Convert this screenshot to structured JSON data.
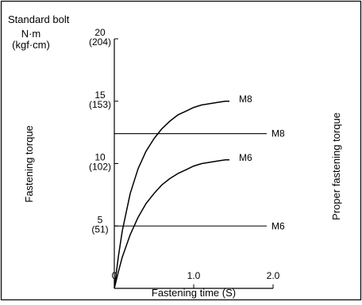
{
  "chart_data": {
    "type": "line",
    "title": "Standard bolt",
    "units_top": "N·m",
    "units_bottom": "(kgf·cm)",
    "xlabel": "Fastening time (S)",
    "ylabel_left": "Fastening torque",
    "ylabel_right": "Proper fastening torque",
    "xlim": [
      0,
      2.0
    ],
    "ylim": [
      0,
      20
    ],
    "x_ticks": [
      {
        "value": 0,
        "label": "0"
      },
      {
        "value": 1.0,
        "label": "1.0"
      },
      {
        "value": 2.0,
        "label": "2.0"
      }
    ],
    "y_ticks": [
      {
        "value": 5,
        "label": "5",
        "sublabel": "(51)"
      },
      {
        "value": 10,
        "label": "10",
        "sublabel": "(102)"
      },
      {
        "value": 15,
        "label": "15",
        "sublabel": "(153)"
      },
      {
        "value": 20,
        "label": "20",
        "sublabel": "(204)"
      }
    ],
    "series": [
      {
        "name": "M8",
        "x": [
          0,
          0.05,
          0.1,
          0.2,
          0.3,
          0.4,
          0.5,
          0.6,
          0.7,
          0.8,
          0.9,
          1.0,
          1.1,
          1.2,
          1.3,
          1.4,
          1.45
        ],
        "y": [
          0,
          2.5,
          4.6,
          7.6,
          9.6,
          11.0,
          12.0,
          12.8,
          13.4,
          13.9,
          14.2,
          14.5,
          14.7,
          14.8,
          14.9,
          15.0,
          15.0
        ]
      },
      {
        "name": "M6",
        "x": [
          0,
          0.05,
          0.1,
          0.2,
          0.3,
          0.4,
          0.5,
          0.6,
          0.7,
          0.8,
          0.9,
          1.0,
          1.1,
          1.2,
          1.3,
          1.4,
          1.45
        ],
        "y": [
          0,
          1.3,
          2.5,
          4.3,
          5.7,
          6.8,
          7.6,
          8.3,
          8.8,
          9.2,
          9.5,
          9.8,
          10.0,
          10.1,
          10.2,
          10.3,
          10.3
        ]
      }
    ],
    "reference_lines": [
      {
        "name": "M8",
        "y": 12.4
      },
      {
        "name": "M6",
        "y": 5.0
      }
    ]
  }
}
